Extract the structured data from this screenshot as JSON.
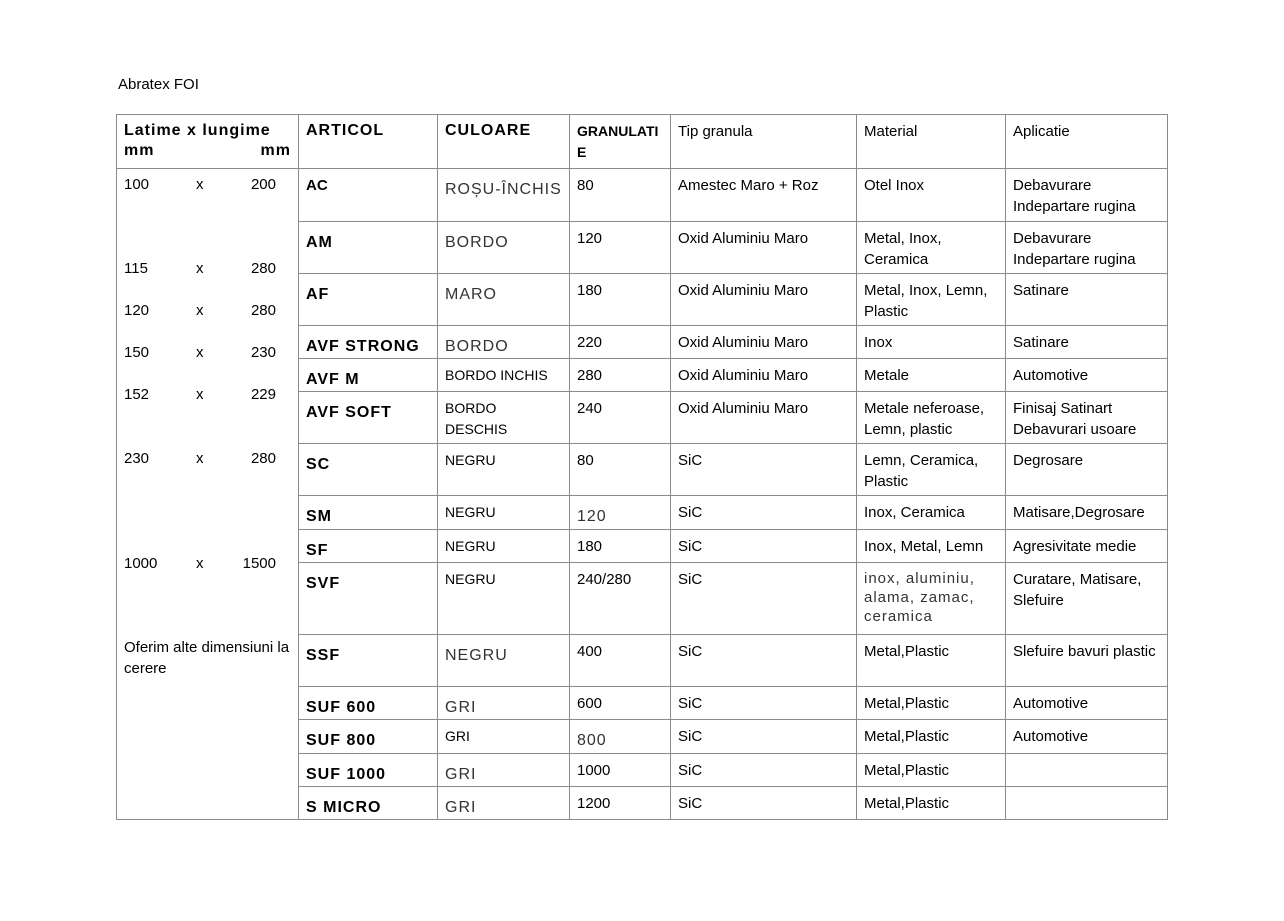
{
  "title": "Abratex FOI",
  "headers": {
    "dimensions": [
      "Latime x lungime",
      "mm",
      "mm"
    ],
    "articol": "ARTICOL",
    "culoare": "CULOARE",
    "granulatie": "GRANULATIE",
    "tip_granula": "Tip granula",
    "material": "Material",
    "aplicatie": "Aplicatie"
  },
  "sizes": [
    {
      "w": "100",
      "x": "x",
      "l": "200"
    },
    {
      "w": "115",
      "x": "x",
      "l": "280"
    },
    {
      "w": "120",
      "x": "x",
      "l": "280"
    },
    {
      "w": "150",
      "x": "x",
      "l": "230"
    },
    {
      "w": "152",
      "x": "x",
      "l": "229"
    },
    {
      "w": "230",
      "x": "x",
      "l": "280"
    },
    {
      "w": "1000",
      "x": "x",
      "l": "1500"
    }
  ],
  "note": "Oferim alte dimensiuni la cerere",
  "rows": [
    {
      "articol": "AC",
      "culoare": "ROȘU-ÎNCHIS",
      "granulatie": "80",
      "tip": "Amestec Maro + Roz",
      "material": "Otel Inox",
      "aplicatie": "Debavurare Indepartare rugina"
    },
    {
      "articol": "AM",
      "culoare": "BORDO",
      "granulatie": "120",
      "tip": "Oxid Aluminiu Maro",
      "material": "Metal, Inox, Ceramica",
      "aplicatie": "Debavurare Indepartare rugina"
    },
    {
      "articol": "AF",
      "culoare": "MARO",
      "granulatie": "180",
      "tip": "Oxid Aluminiu Maro",
      "material": "Metal, Inox, Lemn, Plastic",
      "aplicatie": "Satinare"
    },
    {
      "articol": "AVF STRONG",
      "culoare": "BORDO",
      "granulatie": "220",
      "tip": "Oxid Aluminiu Maro",
      "material": "Inox",
      "aplicatie": "Satinare"
    },
    {
      "articol": "AVF M",
      "culoare": "BORDO INCHIS",
      "granulatie": "280",
      "tip": "Oxid Aluminiu Maro",
      "material": "Metale",
      "aplicatie": "Automotive"
    },
    {
      "articol": "AVF SOFT",
      "culoare": "BORDO DESCHIS",
      "granulatie": "240",
      "tip": "Oxid Aluminiu Maro",
      "material": "Metale neferoase, Lemn, plastic",
      "aplicatie": "Finisaj Satinart Debavurari usoare"
    },
    {
      "articol": "SC",
      "culoare": "NEGRU",
      "granulatie": "80",
      "tip": "SiC",
      "material": "Lemn, Ceramica, Plastic",
      "aplicatie": "Degrosare"
    },
    {
      "articol": "SM",
      "culoare": "NEGRU",
      "granulatie": "120",
      "tip": "SiC",
      "material": "Inox, Ceramica",
      "aplicatie": "Matisare,Degrosare"
    },
    {
      "articol": "SF",
      "culoare": "NEGRU",
      "granulatie": "180",
      "tip": "SiC",
      "material": "Inox, Metal,  Lemn",
      "aplicatie": "Agresivitate medie"
    },
    {
      "articol": "SVF",
      "culoare": "NEGRU",
      "granulatie": "240/280",
      "tip": "SiC",
      "material": "inox, aluminiu, alama, zamac, ceramica",
      "aplicatie": "Curatare, Matisare, Slefuire"
    },
    {
      "articol": "SSF",
      "culoare": "NEGRU",
      "granulatie": "400",
      "tip": "SiC",
      "material": "Metal,Plastic",
      "aplicatie": "Slefuire bavuri plastic"
    },
    {
      "articol": "SUF 600",
      "culoare": "GRI",
      "granulatie": "600",
      "tip": "SiC",
      "material": "Metal,Plastic",
      "aplicatie": "Automotive"
    },
    {
      "articol": "SUF 800",
      "culoare": "GRI",
      "granulatie": "800",
      "tip": "SiC",
      "material": "Metal,Plastic",
      "aplicatie": "Automotive"
    },
    {
      "articol": "SUF 1000",
      "culoare": "GRI",
      "granulatie": "1000",
      "tip": "SiC",
      "material": "Metal,Plastic",
      "aplicatie": ""
    },
    {
      "articol": "S MICRO",
      "culoare": "GRI",
      "granulatie": "1200",
      "tip": "SiC",
      "material": "Metal,Plastic",
      "aplicatie": ""
    }
  ]
}
